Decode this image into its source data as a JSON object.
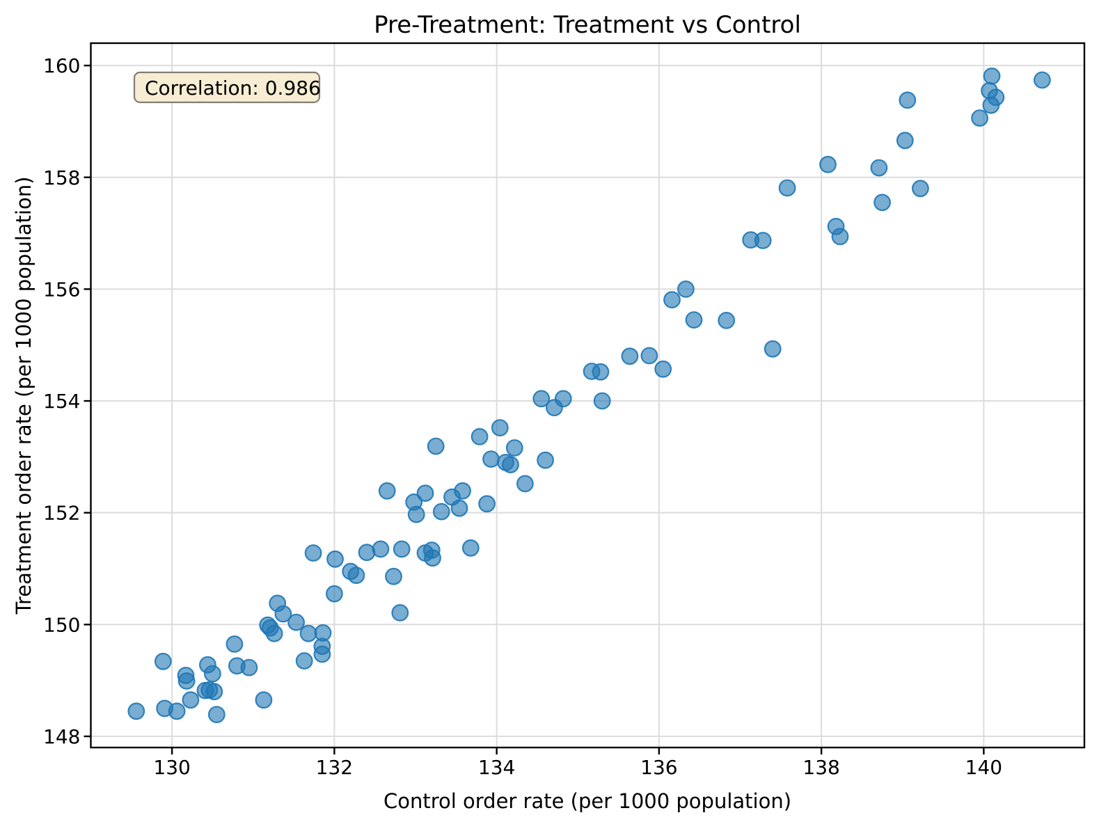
{
  "chart_data": {
    "type": "scatter",
    "title": "Pre-Treatment: Treatment vs Control",
    "xlabel": "Control order rate (per 1000 population)",
    "ylabel": "Treatment order rate (per 1000 population)",
    "xlim": [
      129.0,
      141.24
    ],
    "ylim": [
      147.8,
      160.4
    ],
    "xticks": [
      130,
      132,
      134,
      136,
      138,
      140
    ],
    "yticks": [
      148,
      150,
      152,
      154,
      156,
      158,
      160
    ],
    "grid": true,
    "legend_position": "none",
    "annotation": {
      "text": "Correlation: 0.986",
      "value": 0.986,
      "position": "top-left"
    },
    "marker": {
      "shape": "circle",
      "color": "#1f77b4",
      "alpha": 0.6
    },
    "points": [
      [
        129.56,
        148.45
      ],
      [
        129.89,
        149.34
      ],
      [
        129.91,
        148.5
      ],
      [
        130.06,
        148.45
      ],
      [
        130.17,
        149.09
      ],
      [
        130.18,
        148.99
      ],
      [
        130.23,
        148.65
      ],
      [
        130.41,
        148.82
      ],
      [
        130.44,
        149.28
      ],
      [
        130.46,
        148.83
      ],
      [
        130.5,
        149.12
      ],
      [
        130.52,
        148.8
      ],
      [
        130.55,
        148.39
      ],
      [
        130.77,
        149.65
      ],
      [
        130.8,
        149.26
      ],
      [
        130.95,
        149.23
      ],
      [
        131.13,
        148.65
      ],
      [
        131.18,
        149.99
      ],
      [
        131.21,
        149.94
      ],
      [
        131.26,
        149.84
      ],
      [
        131.3,
        150.38
      ],
      [
        131.37,
        150.19
      ],
      [
        131.53,
        150.04
      ],
      [
        131.63,
        149.35
      ],
      [
        131.68,
        149.84
      ],
      [
        131.74,
        151.28
      ],
      [
        131.85,
        149.47
      ],
      [
        131.85,
        149.61
      ],
      [
        131.86,
        149.85
      ],
      [
        132.0,
        150.55
      ],
      [
        132.01,
        151.17
      ],
      [
        132.2,
        150.95
      ],
      [
        132.27,
        150.88
      ],
      [
        132.4,
        151.29
      ],
      [
        132.57,
        151.35
      ],
      [
        132.65,
        152.39
      ],
      [
        132.73,
        150.86
      ],
      [
        132.81,
        150.21
      ],
      [
        132.83,
        151.35
      ],
      [
        132.98,
        152.19
      ],
      [
        133.01,
        151.97
      ],
      [
        133.12,
        151.28
      ],
      [
        133.12,
        152.35
      ],
      [
        133.2,
        151.33
      ],
      [
        133.21,
        151.19
      ],
      [
        133.25,
        153.19
      ],
      [
        133.32,
        152.02
      ],
      [
        133.45,
        152.28
      ],
      [
        133.54,
        152.08
      ],
      [
        133.58,
        152.39
      ],
      [
        133.68,
        151.37
      ],
      [
        133.79,
        153.36
      ],
      [
        133.88,
        152.16
      ],
      [
        133.93,
        152.96
      ],
      [
        134.04,
        153.52
      ],
      [
        134.11,
        152.9
      ],
      [
        134.17,
        152.86
      ],
      [
        134.22,
        153.16
      ],
      [
        134.35,
        152.52
      ],
      [
        134.55,
        154.04
      ],
      [
        134.6,
        152.94
      ],
      [
        134.71,
        153.88
      ],
      [
        134.82,
        154.04
      ],
      [
        135.17,
        154.53
      ],
      [
        135.28,
        154.52
      ],
      [
        135.3,
        154.0
      ],
      [
        135.64,
        154.8
      ],
      [
        135.88,
        154.81
      ],
      [
        136.05,
        154.57
      ],
      [
        136.16,
        155.81
      ],
      [
        136.33,
        156.0
      ],
      [
        136.43,
        155.45
      ],
      [
        136.83,
        155.44
      ],
      [
        137.13,
        156.88
      ],
      [
        137.28,
        156.87
      ],
      [
        137.4,
        154.93
      ],
      [
        137.58,
        157.81
      ],
      [
        138.08,
        158.23
      ],
      [
        138.18,
        157.12
      ],
      [
        138.23,
        156.94
      ],
      [
        138.71,
        158.17
      ],
      [
        138.75,
        157.55
      ],
      [
        139.03,
        158.66
      ],
      [
        139.06,
        159.38
      ],
      [
        139.22,
        157.8
      ],
      [
        139.95,
        159.06
      ],
      [
        140.07,
        159.55
      ],
      [
        140.09,
        159.29
      ],
      [
        140.1,
        159.81
      ],
      [
        140.15,
        159.43
      ],
      [
        140.72,
        159.74
      ]
    ]
  },
  "colors": {
    "marker": "#1f77b4",
    "grid": "#dcdcdc",
    "axes": "#000000",
    "annotation_bg": "#f6edd3",
    "annotation_border": "#827d72",
    "background": "#ffffff"
  }
}
